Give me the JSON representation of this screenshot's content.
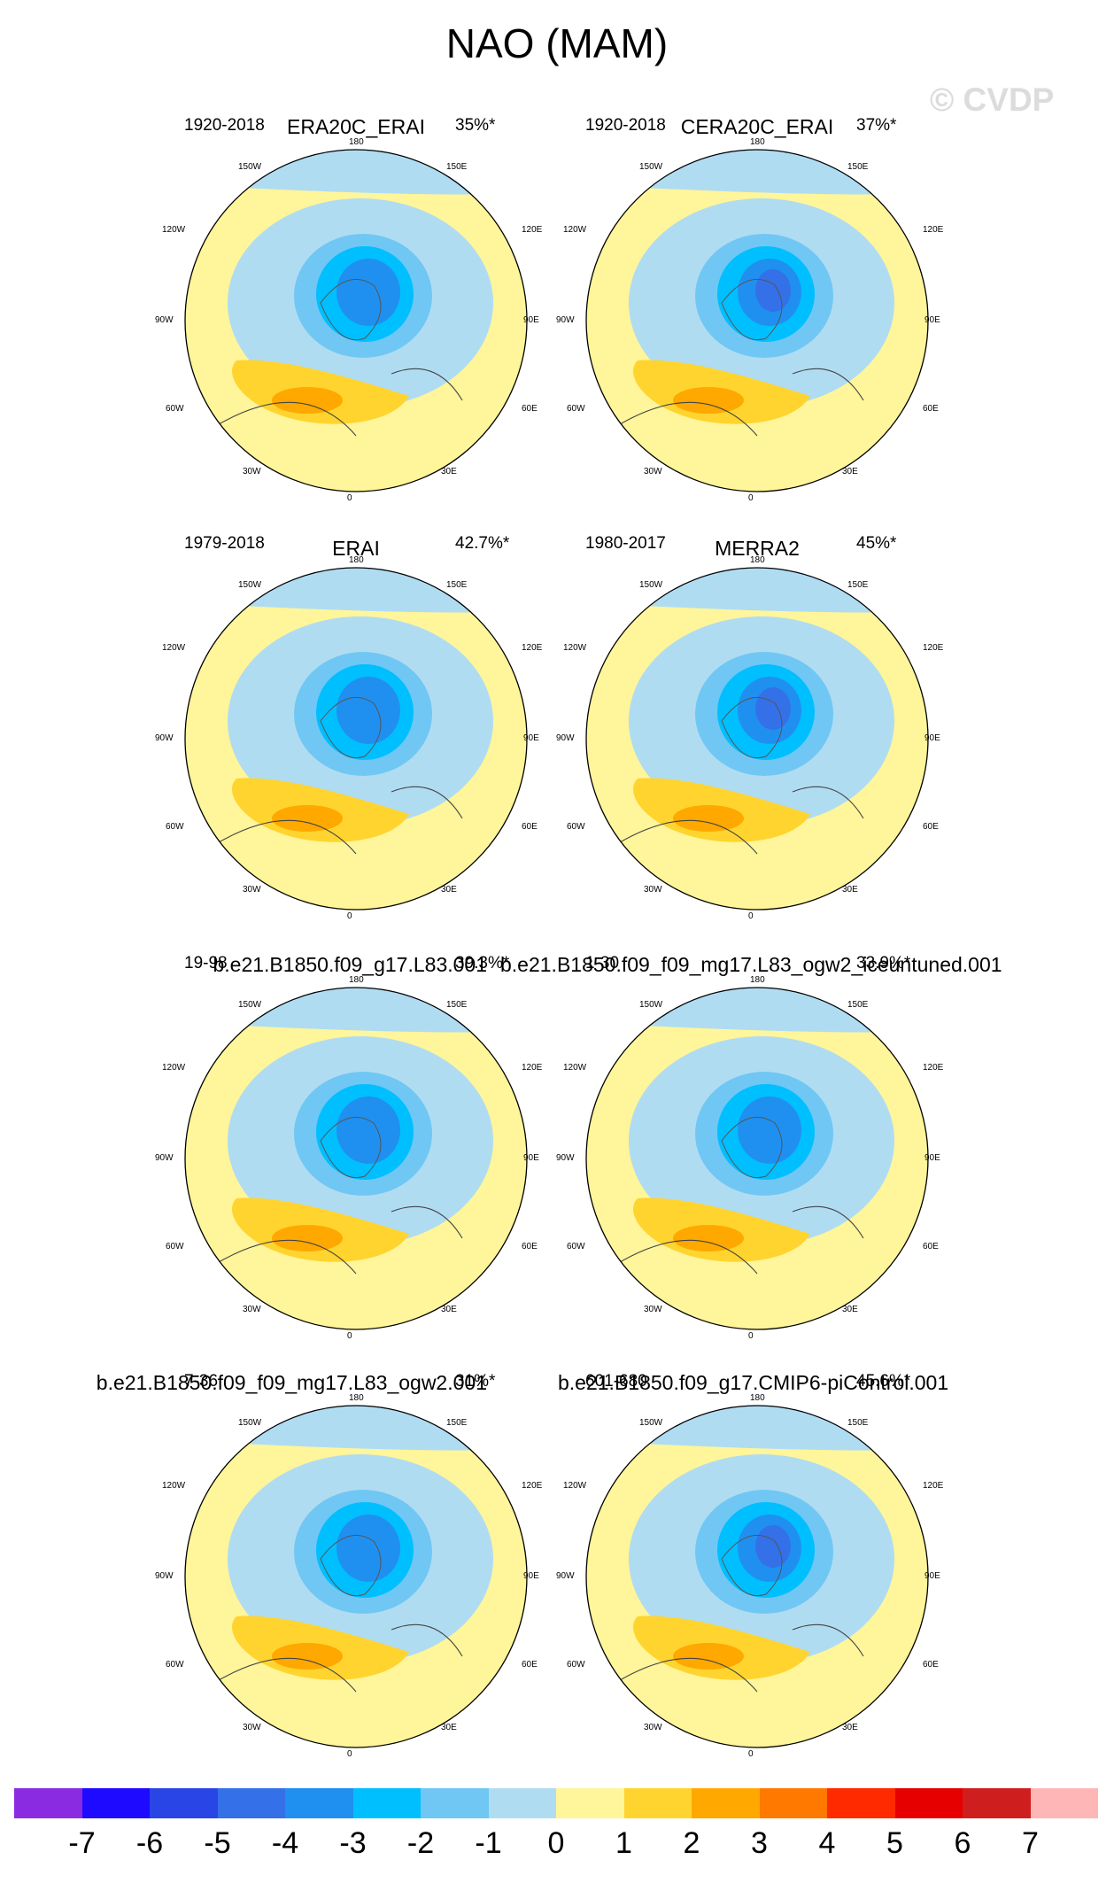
{
  "title": "NAO (MAM)",
  "watermark": "© CVDP",
  "axis_labels": {
    "top": "180",
    "top_left": "150W",
    "top_right": "150E",
    "upper_left": "120W",
    "upper_right": "120E",
    "left": "90W",
    "right": "90E",
    "lower_left": "60W",
    "lower_right": "60E",
    "bottom_left": "30W",
    "bottom_right": "30E",
    "bottom": "0"
  },
  "panels": [
    {
      "name": "ERA20C_ERAI",
      "years": "1920-2018",
      "pct": "35%*"
    },
    {
      "name": "CERA20C_ERAI",
      "years": "1920-2018",
      "pct": "37%*"
    },
    {
      "name": "ERAI",
      "years": "1979-2018",
      "pct": "42.7%*"
    },
    {
      "name": "MERRA2",
      "years": "1980-2017",
      "pct": "45%*"
    },
    {
      "name": "b.e21.B1850.f09_g17.L83.001",
      "years": "19-98",
      "pct": "39.3%*"
    },
    {
      "name": "b.e21.B1850.f09_f09_mg17.L83_ogw2_iceuntuned.001",
      "years": "1-30",
      "pct": "33.9%*"
    },
    {
      "name": "b.e21.B1850.f09_f09_mg17.L83_ogw2.001",
      "years": "7-36",
      "pct": "31%*"
    },
    {
      "name": "b.e21.B1850.f09_g17.CMIP6-piControl.001",
      "years": "601-680",
      "pct": "45.6%*"
    }
  ],
  "colorbar": {
    "colors": [
      "#8a2be2",
      "#1e0aff",
      "#2a45e6",
      "#3470e8",
      "#2090f0",
      "#00bfff",
      "#70c7f4",
      "#b0dcf2",
      "#fff59a",
      "#ffd42e",
      "#ffa800",
      "#ff7800",
      "#ff2a00",
      "#e60000",
      "#cf1e1e",
      "#ffb6b6"
    ],
    "ticks": [
      "-7",
      "-6",
      "-5",
      "-4",
      "-3",
      "-2",
      "-1",
      "0",
      "1",
      "2",
      "3",
      "4",
      "5",
      "6",
      "7"
    ]
  }
}
